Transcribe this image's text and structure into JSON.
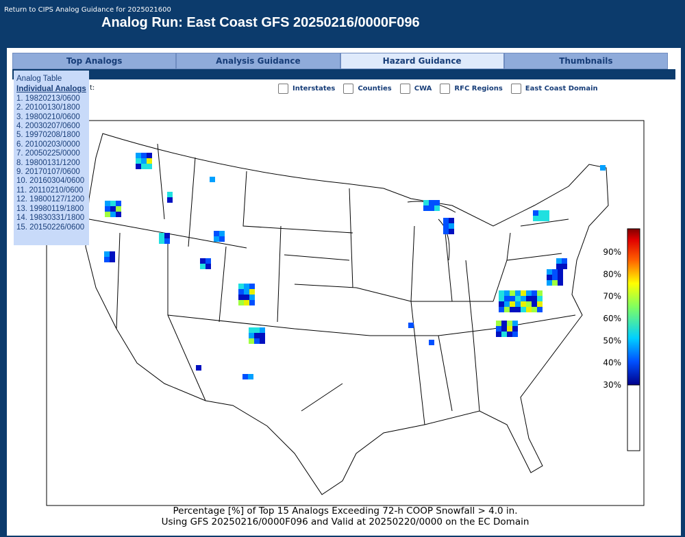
{
  "header": {
    "back_link": "Return to CIPS Analog Guidance for 2025021600",
    "title": "Analog Run: East Coast GFS 20250216/0000F096"
  },
  "tabs": [
    "Top Analogs",
    "Analysis Guidance",
    "Hazard Guidance",
    "Thumbnails"
  ],
  "active_tab": 2,
  "analog_table": {
    "title": "Analog Table",
    "heading": "Individual Analogs",
    "items": [
      "1. 19820213/0600",
      "2. 20100130/1800",
      "3. 19800210/0600",
      "4. 20030207/0600",
      "5. 19970208/1800",
      "6. 20100203/0000",
      "7. 20050225/0000",
      "8. 19800131/1200",
      "9. 20170107/0600",
      "10. 20160304/0600",
      "11. 20110210/0600",
      "12. 19800127/1200",
      "13. 19980119/1800",
      "14. 19830331/1800",
      "15. 20150226/0600"
    ]
  },
  "overlay_prefix": "t:",
  "overlays": [
    "Interstates",
    "Counties",
    "CWA",
    "RFC Regions",
    "East Coast Domain"
  ],
  "map": {
    "colorbar_labels": [
      "90%",
      "80%",
      "70%",
      "60%",
      "50%",
      "40%",
      "30%"
    ],
    "caption": [
      "Percentage [%] of Top 15 Analogs Exceeding 72-h COOP Snowfall > 4.0 in.",
      "Using GFS 20250216/0000F096 and Valid at 20250220/0000 on the EC Domain"
    ]
  }
}
